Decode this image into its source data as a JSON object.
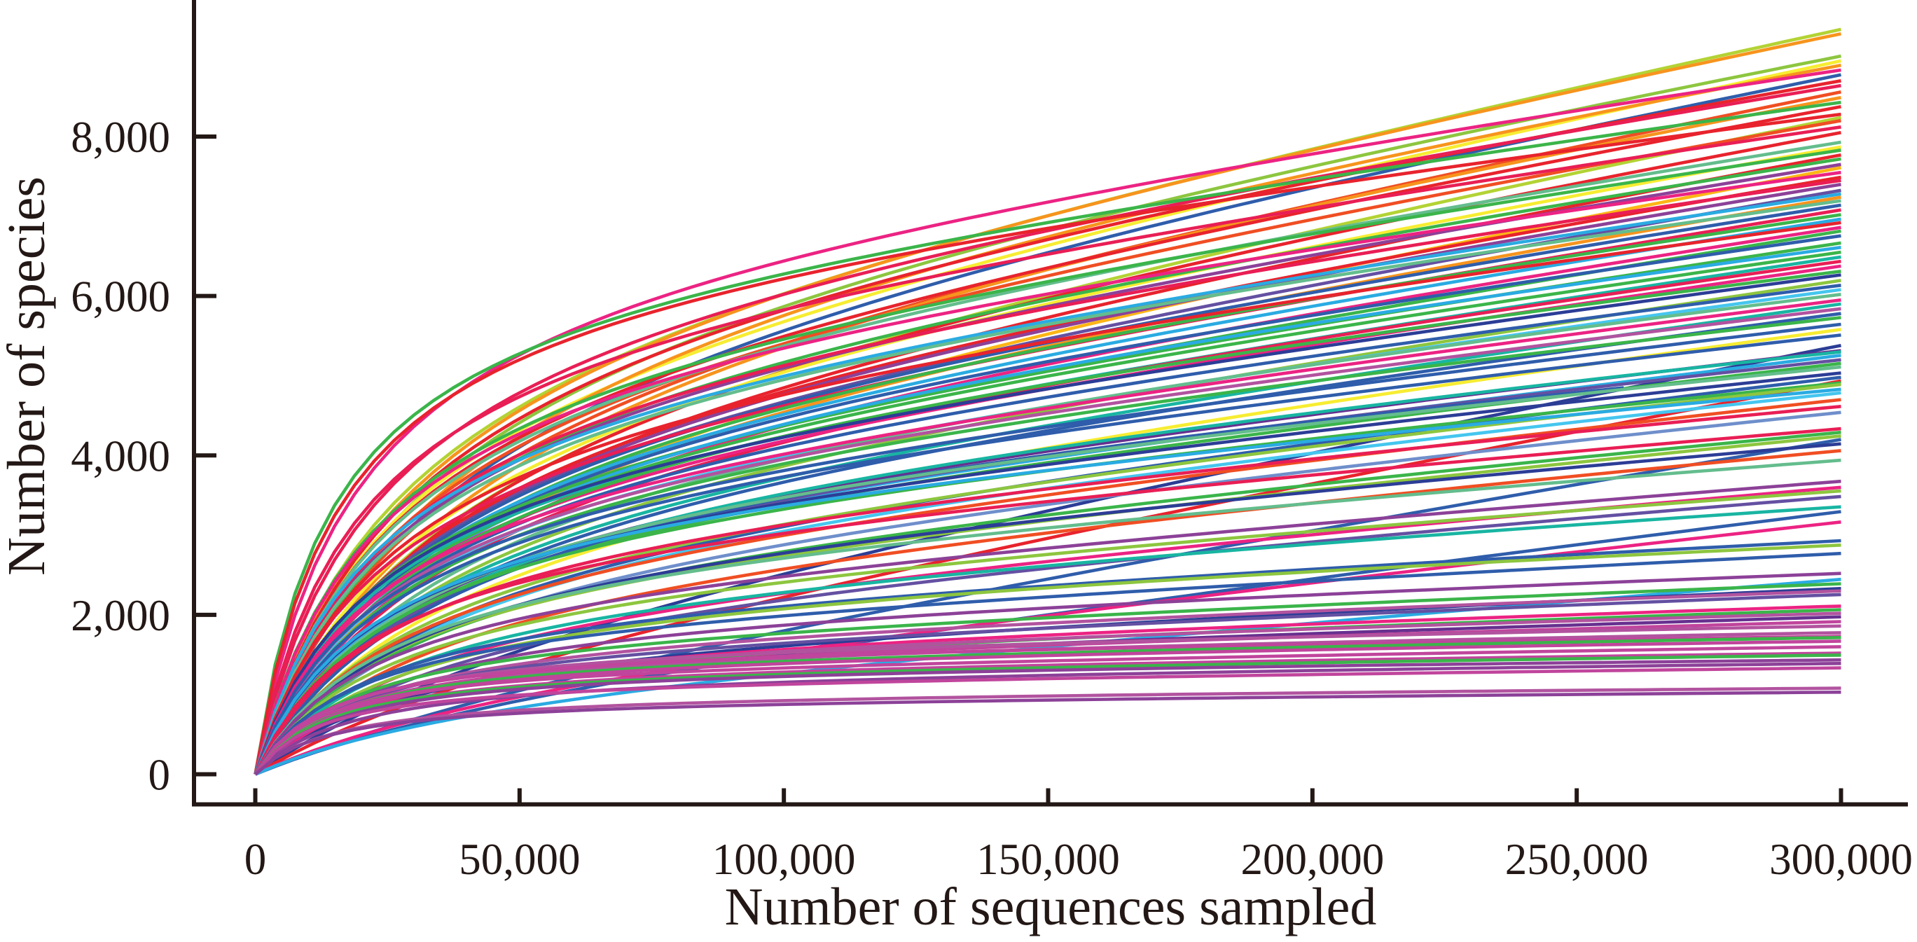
{
  "chart_data": {
    "type": "line",
    "title": "",
    "xlabel": "Number of sequences sampled",
    "ylabel": "Number of species",
    "xlim": [
      0,
      312600
    ],
    "ylim": [
      0,
      9700
    ],
    "x_max_data": 300000,
    "grid": false,
    "legend": "none",
    "axis_color": "#231815",
    "background": "#ffffff",
    "x_ticks": [
      {
        "value": 0,
        "label": "0"
      },
      {
        "value": 50000,
        "label": "50,000"
      },
      {
        "value": 100000,
        "label": "100,000"
      },
      {
        "value": 150000,
        "label": "150,000"
      },
      {
        "value": 200000,
        "label": "200,000"
      },
      {
        "value": 250000,
        "label": "250,000"
      },
      {
        "value": 300000,
        "label": "300,000"
      }
    ],
    "y_ticks": [
      {
        "value": 0,
        "label": "0"
      },
      {
        "value": 2000,
        "label": "2,000"
      },
      {
        "value": 4000,
        "label": "4,000"
      },
      {
        "value": 6000,
        "label": "6,000"
      },
      {
        "value": 8000,
        "label": "8,000"
      }
    ],
    "palette": {
      "red": "#e8232d",
      "vermilion": "#f04e23",
      "orange": "#f7941d",
      "gold": "#fdb515",
      "yellow": "#f7ed32",
      "oliveyg": "#b3d334",
      "yg": "#8dc63f",
      "green": "#3bb54a",
      "seagreen": "#64bd8d",
      "teal": "#18b5a2",
      "cyan": "#45c6ef",
      "sky": "#2aabe2",
      "ltblue": "#6f8fcb",
      "blue": "#2f5dab",
      "navy": "#2c3d96",
      "violet": "#6450a2",
      "dkpurple": "#67308f",
      "purple": "#8c4198",
      "orchid": "#b2539f",
      "magenta": "#c0459c",
      "pink": "#ec2383",
      "crimson": "#e91e55"
    },
    "curve_format": "[species_at_end, color_key, half_saturation_a, linear_weight_w, x_end_fraction_optional]",
    "curve_model": "species(t) = end * ((1-w)*(1+a)*t/(t+a) + w*t), t = sequences / 300000",
    "curves": [
      [
        9345,
        "oliveyg",
        0.08,
        0.42
      ],
      [
        9290,
        "orange",
        0.09,
        0.4
      ],
      [
        9010,
        "yg",
        0.1,
        0.38
      ],
      [
        8950,
        "yellow",
        0.08,
        0.44
      ],
      [
        8895,
        "orange",
        0.12,
        0.36
      ],
      [
        8835,
        "pink",
        0.06,
        0.3
      ],
      [
        8775,
        "blue",
        0.11,
        0.4
      ],
      [
        8700,
        "red",
        0.09,
        0.36
      ],
      [
        8640,
        "crimson",
        0.07,
        0.34
      ],
      [
        8560,
        "vermilion",
        0.1,
        0.42
      ],
      [
        8490,
        "orange",
        0.13,
        0.38
      ],
      [
        8430,
        "green",
        0.045,
        0.3
      ],
      [
        8375,
        "red",
        0.08,
        0.4
      ],
      [
        8280,
        "red",
        0.05,
        0.28
      ],
      [
        8240,
        "oliveyg",
        0.11,
        0.44
      ],
      [
        8200,
        "vermilion",
        0.09,
        0.38
      ],
      [
        8120,
        "crimson",
        0.06,
        0.32
      ],
      [
        8050,
        "red",
        0.12,
        0.4
      ],
      [
        7930,
        "seagreen",
        0.08,
        0.36
      ],
      [
        7870,
        "yellow",
        0.1,
        0.4
      ],
      [
        7830,
        "green",
        0.07,
        0.34
      ],
      [
        7770,
        "red",
        0.11,
        0.42
      ],
      [
        7720,
        "green",
        0.09,
        0.36
      ],
      [
        7650,
        "purple",
        0.08,
        0.38
      ],
      [
        7610,
        "gold",
        0.12,
        0.44
      ],
      [
        7550,
        "pink",
        0.07,
        0.32
      ],
      [
        7490,
        "red",
        0.1,
        0.4
      ],
      [
        7450,
        "crimson",
        0.08,
        0.34
      ],
      [
        7400,
        "purple",
        0.11,
        0.38
      ],
      [
        7325,
        "violet",
        0.09,
        0.42
      ],
      [
        7280,
        "sky",
        0.07,
        0.36
      ],
      [
        7240,
        "orange",
        0.12,
        0.4
      ],
      [
        7195,
        "seagreen",
        0.08,
        0.34
      ],
      [
        7140,
        "blue",
        0.1,
        0.38
      ],
      [
        7080,
        "crimson",
        0.07,
        0.42
      ],
      [
        7020,
        "green",
        0.11,
        0.36
      ],
      [
        6965,
        "sky",
        0.09,
        0.4
      ],
      [
        6920,
        "red",
        0.08,
        0.34
      ],
      [
        6860,
        "pink",
        0.12,
        0.38
      ],
      [
        6815,
        "green",
        0.07,
        0.44
      ],
      [
        6755,
        "blue",
        0.1,
        0.36
      ],
      [
        6665,
        "green",
        0.08,
        0.4
      ],
      [
        6610,
        "sky",
        0.11,
        0.34
      ],
      [
        6550,
        "green",
        0.09,
        0.38
      ],
      [
        6490,
        "teal",
        0.07,
        0.42
      ],
      [
        6435,
        "crimson",
        0.12,
        0.36
      ],
      [
        6375,
        "pink",
        0.08,
        0.4
      ],
      [
        6310,
        "green",
        0.1,
        0.34
      ],
      [
        6265,
        "navy",
        0.07,
        0.38
      ],
      [
        6195,
        "yg",
        0.11,
        0.42
      ],
      [
        6135,
        "blue",
        0.09,
        0.36
      ],
      [
        6080,
        "cyan",
        0.08,
        0.4
      ],
      [
        6020,
        "seagreen",
        0.12,
        0.34
      ],
      [
        5950,
        "pink",
        0.07,
        0.38
      ],
      [
        5900,
        "teal",
        0.1,
        0.42
      ],
      [
        5840,
        "orchid",
        0.08,
        0.36
      ],
      [
        5780,
        "blue",
        0.11,
        0.4
      ],
      [
        5730,
        "green",
        0.09,
        0.34
      ],
      [
        5645,
        "blue",
        0.07,
        0.38
      ],
      [
        5580,
        "yellow",
        0.12,
        0.42
      ],
      [
        5510,
        "blue",
        0.08,
        0.36
      ],
      [
        5380,
        "navy",
        0.2,
        0.68
      ],
      [
        5315,
        "dkpurple",
        0.09,
        0.38
      ],
      [
        5300,
        "teal",
        0.11,
        0.34
      ],
      [
        5255,
        "sky",
        0.07,
        0.42
      ],
      [
        5200,
        "violet",
        0.1,
        0.36
      ],
      [
        5155,
        "green",
        0.08,
        0.4
      ],
      [
        5120,
        "blue",
        0.12,
        0.3,
        0.863
      ],
      [
        5110,
        "seagreen",
        0.09,
        0.34
      ],
      [
        5035,
        "navy",
        0.07,
        0.38
      ],
      [
        4980,
        "blue",
        0.11,
        0.42
      ],
      [
        4935,
        "red",
        0.2,
        0.72
      ],
      [
        4910,
        "green",
        0.08,
        0.36
      ],
      [
        4890,
        "yg",
        0.1,
        0.4
      ],
      [
        4830,
        "sky",
        0.07,
        0.34
      ],
      [
        4785,
        "cyan",
        0.12,
        0.38
      ],
      [
        4700,
        "vermilion",
        0.09,
        0.42
      ],
      [
        4615,
        "crimson",
        0.08,
        0.36
      ],
      [
        4540,
        "ltblue",
        0.11,
        0.4
      ],
      [
        4335,
        "crimson",
        0.07,
        0.34
      ],
      [
        4290,
        "green",
        0.1,
        0.38
      ],
      [
        4245,
        "yg",
        0.08,
        0.42
      ],
      [
        4200,
        "blue",
        0.25,
        0.75
      ],
      [
        4145,
        "navy",
        0.09,
        0.36
      ],
      [
        4060,
        "vermilion",
        0.11,
        0.4
      ],
      [
        3940,
        "seagreen",
        0.08,
        0.34
      ],
      [
        3675,
        "purple",
        0.07,
        0.38
      ],
      [
        3600,
        "pink",
        0.1,
        0.42
      ],
      [
        3555,
        "yg",
        0.08,
        0.36
      ],
      [
        3485,
        "violet",
        0.12,
        0.4
      ],
      [
        3355,
        "teal",
        0.09,
        0.34
      ],
      [
        3295,
        "blue",
        0.2,
        0.7
      ],
      [
        3165,
        "pink",
        0.18,
        0.65
      ],
      [
        2930,
        "blue",
        0.07,
        0.3
      ],
      [
        2875,
        "yg",
        0.09,
        0.26
      ],
      [
        2770,
        "blue",
        0.06,
        0.32
      ],
      [
        2520,
        "purple",
        0.08,
        0.24
      ],
      [
        2445,
        "sky",
        0.15,
        0.6
      ],
      [
        2390,
        "green",
        0.06,
        0.28
      ],
      [
        2330,
        "navy",
        0.09,
        0.32
      ],
      [
        2300,
        "orchid",
        0.07,
        0.26
      ],
      [
        2255,
        "violet",
        0.06,
        0.3
      ],
      [
        2110,
        "pink",
        0.08,
        0.24
      ],
      [
        2065,
        "green",
        0.06,
        0.28
      ],
      [
        2020,
        "orchid",
        0.07,
        0.22
      ],
      [
        1975,
        "dkpurple",
        0.06,
        0.26
      ],
      [
        1915,
        "magenta",
        0.05,
        0.24
      ],
      [
        1860,
        "orchid",
        0.05,
        0.16
      ],
      [
        1776,
        "orchid",
        0.06,
        0.14
      ],
      [
        1730,
        "magenta",
        0.045,
        0.12
      ],
      [
        1715,
        "green",
        0.05,
        0.15
      ],
      [
        1670,
        "magenta",
        0.055,
        0.13
      ],
      [
        1600,
        "magenta",
        0.04,
        0.16
      ],
      [
        1520,
        "magenta",
        0.05,
        0.12
      ],
      [
        1495,
        "green",
        0.045,
        0.14
      ],
      [
        1435,
        "purple",
        0.05,
        0.1
      ],
      [
        1390,
        "purple",
        0.06,
        0.12
      ],
      [
        1335,
        "magenta",
        0.04,
        0.14
      ],
      [
        1080,
        "orchid",
        0.05,
        0.1
      ],
      [
        1030,
        "purple",
        0.045,
        0.12
      ]
    ]
  }
}
